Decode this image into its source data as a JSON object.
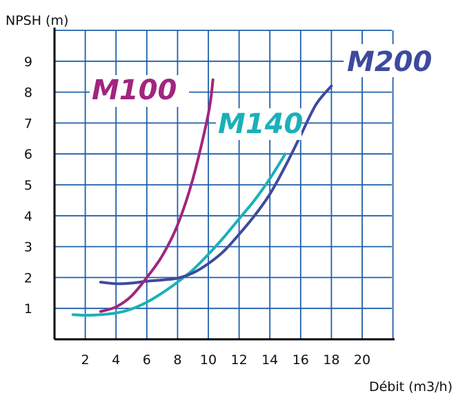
{
  "chart_data": {
    "type": "line",
    "title": "",
    "xlabel": "Débit (m3/h)",
    "ylabel": "NPSH (m)",
    "xlim": [
      0,
      22.5
    ],
    "ylim": [
      0,
      10
    ],
    "xticks": [
      2,
      4,
      6,
      8,
      10,
      12,
      14,
      16,
      18,
      20
    ],
    "yticks": [
      1,
      2,
      3,
      4,
      5,
      6,
      7,
      8,
      9
    ],
    "grid": true,
    "legend": "inline labels",
    "series": [
      {
        "name": "M100",
        "color": "#A0267E",
        "x": [
          3,
          4,
          5,
          6,
          7,
          8,
          9,
          10,
          10.3
        ],
        "y": [
          0.9,
          1.05,
          1.4,
          2.0,
          2.7,
          3.7,
          5.2,
          7.3,
          8.4
        ]
      },
      {
        "name": "M140",
        "color": "#1BB0B8",
        "x": [
          1.2,
          2,
          3,
          4,
          5,
          6,
          7,
          8,
          9,
          10,
          11,
          12,
          13,
          14,
          15
        ],
        "y": [
          0.8,
          0.78,
          0.8,
          0.85,
          0.98,
          1.2,
          1.5,
          1.85,
          2.25,
          2.75,
          3.3,
          3.9,
          4.5,
          5.2,
          6.0
        ]
      },
      {
        "name": "M200",
        "color": "#3D4A9E",
        "x": [
          3,
          4,
          5,
          6,
          7,
          8,
          9,
          10,
          11,
          12,
          13,
          14,
          15,
          16,
          17,
          18
        ],
        "y": [
          1.85,
          1.8,
          1.82,
          1.88,
          1.92,
          1.98,
          2.15,
          2.45,
          2.85,
          3.4,
          4.0,
          4.7,
          5.6,
          6.6,
          7.6,
          8.2
        ]
      }
    ]
  },
  "labels": {
    "m100": "M100",
    "m140": "M140",
    "m200": "M200"
  }
}
